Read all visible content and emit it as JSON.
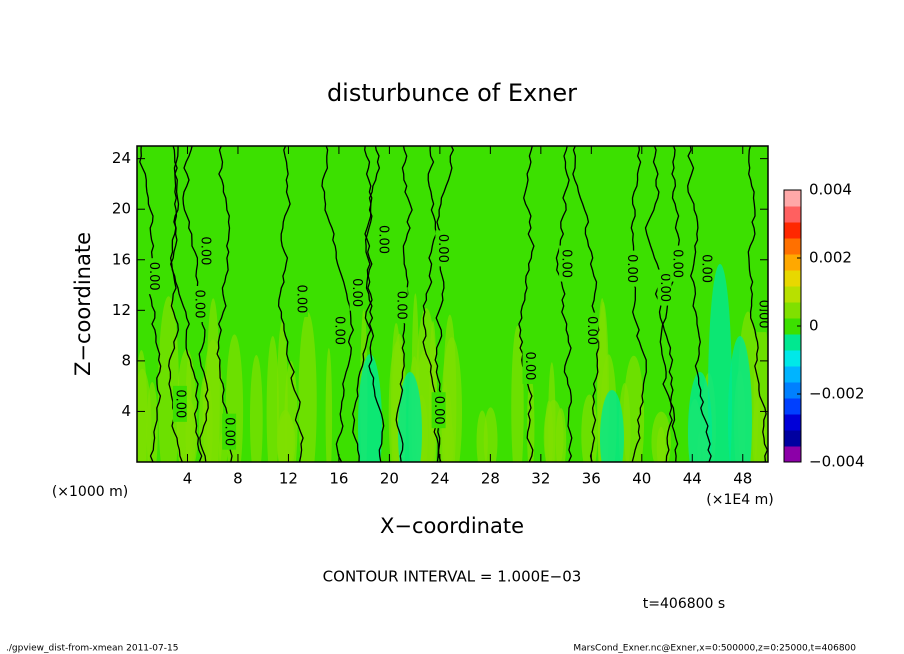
{
  "chart_data": {
    "type": "contour",
    "title": "disturbunce of Exner",
    "x_label": "X−coordinate",
    "y_label": "Z−coordinate",
    "y_unit": "(×1000 m)",
    "x_unit": "(×1E4 m)",
    "xlim": [
      0,
      50
    ],
    "xticks": [
      4,
      8,
      12,
      16,
      20,
      24,
      28,
      32,
      36,
      40,
      44,
      48
    ],
    "ylim": [
      0,
      25
    ],
    "yticks": [
      4,
      8,
      12,
      16,
      20,
      24
    ],
    "colorbar": {
      "lim": [
        -0.004,
        0.004
      ],
      "ticks": [
        {
          "value": -0.004,
          "label": "−0.004"
        },
        {
          "value": -0.002,
          "label": "−0.002"
        },
        0,
        0.002,
        0.004
      ],
      "colors": [
        "#8c00a8",
        "#0000a0",
        "#0000d8",
        "#0040ff",
        "#0080ff",
        "#00b4ff",
        "#00e8e8",
        "#00e890",
        "#3ce000",
        "#80e000",
        "#b8e000",
        "#e8d800",
        "#ffa800",
        "#ff7000",
        "#ff2800",
        "#ff6060",
        "#ffa8a8"
      ]
    },
    "contour_labels": [
      {
        "x": 1.3,
        "y": 14.7,
        "label": "0.00"
      },
      {
        "x": 3.4,
        "y": 4.6,
        "label": "0.00"
      },
      {
        "x": 5.4,
        "y": 16.7,
        "label": "0.00"
      },
      {
        "x": 4.9,
        "y": 12.5,
        "label": "0.00"
      },
      {
        "x": 7.3,
        "y": 2.4,
        "label": "0.00"
      },
      {
        "x": 13,
        "y": 12.9,
        "label": "0.00"
      },
      {
        "x": 16,
        "y": 10.4,
        "label": "0.00"
      },
      {
        "x": 17.4,
        "y": 13.4,
        "label": "0.00"
      },
      {
        "x": 19.5,
        "y": 17.6,
        "label": "0.00"
      },
      {
        "x": 20.9,
        "y": 12.4,
        "label": "0.00"
      },
      {
        "x": 23.9,
        "y": 4.1,
        "label": "0.00"
      },
      {
        "x": 24.2,
        "y": 16.9,
        "label": "0.00"
      },
      {
        "x": 31.1,
        "y": 7.6,
        "label": "0.00"
      },
      {
        "x": 34,
        "y": 15.7,
        "label": "0.00"
      },
      {
        "x": 36,
        "y": 10.4,
        "label": "0.00"
      },
      {
        "x": 39.2,
        "y": 15.3,
        "label": "0.00"
      },
      {
        "x": 41.8,
        "y": 13.8,
        "label": "0.00"
      },
      {
        "x": 42.8,
        "y": 15.7,
        "label": "0.00"
      },
      {
        "x": 45.1,
        "y": 15.3,
        "label": "0.00"
      },
      {
        "x": 49.6,
        "y": 11.7,
        "label": "0.00"
      }
    ],
    "contour_interval": "CONTOUR INTERVAL = 1.000E−03",
    "time": "t=406800 s",
    "footer_left": "./gpview_dist-from-xmean  2011-07-15",
    "footer_right": "MarsCond_Exner.nc@Exner,x=0:500000,z=0:25000,t=406800"
  }
}
